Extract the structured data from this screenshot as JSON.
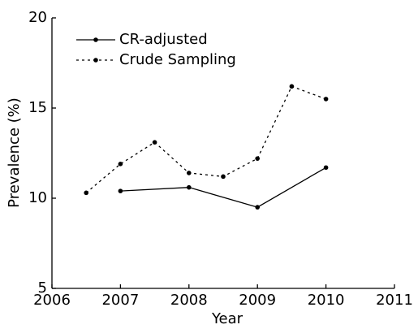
{
  "chart_data": {
    "type": "line",
    "xlabel": "Year",
    "ylabel": "Prevalence (%)",
    "xlim": [
      2006,
      2011
    ],
    "xticks": [
      2006,
      2007,
      2008,
      2009,
      2010,
      2011
    ],
    "ylim": [
      5,
      20
    ],
    "yticks": [
      5,
      10,
      15,
      20
    ],
    "legend": "upper left",
    "series": [
      {
        "name": "CR-adjusted",
        "color": "#000000",
        "linestyle": "solid",
        "x": [
          2007,
          2008,
          2009,
          2010
        ],
        "values": [
          10.4,
          10.6,
          9.5,
          11.7
        ]
      },
      {
        "name": "Crude Sampling",
        "color": "#000000",
        "linestyle": "dotted",
        "x": [
          2006.5,
          2007,
          2007.5,
          2008,
          2008.5,
          2009,
          2009.5,
          2010
        ],
        "values": [
          10.3,
          11.9,
          13.1,
          11.4,
          11.2,
          12.2,
          16.2,
          15.5
        ]
      }
    ]
  }
}
